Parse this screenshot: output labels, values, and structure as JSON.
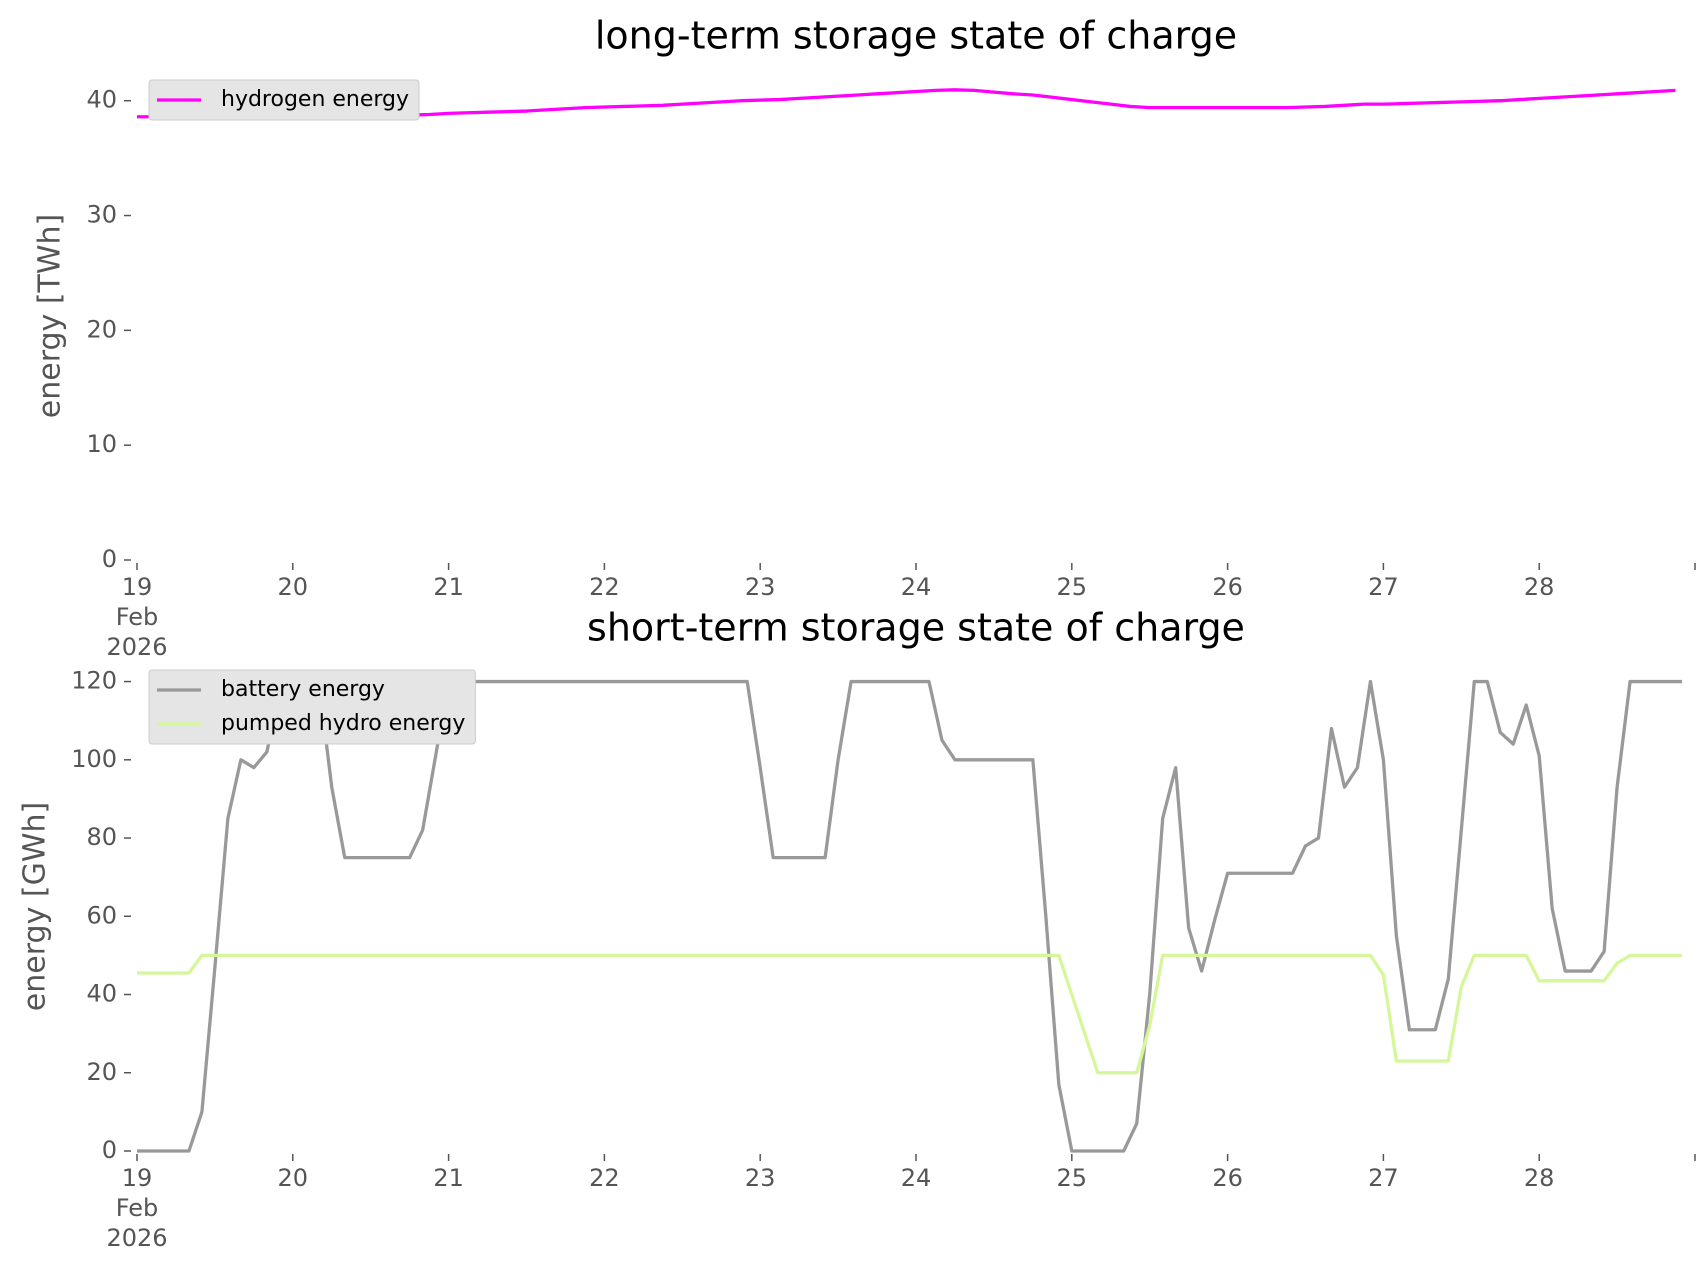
{
  "chart_data": [
    {
      "type": "line",
      "title": "long-term storage state of charge",
      "ylabel": "energy [TWh]",
      "xlim": [
        "2026-02-19T00:00",
        "2026-03-01T00:00"
      ],
      "xticks": [
        {
          "value": "2026-02-19T00:00",
          "label": "19\nFeb\n2026"
        },
        {
          "value": "2026-02-20T00:00",
          "label": "20"
        },
        {
          "value": "2026-02-21T00:00",
          "label": "21"
        },
        {
          "value": "2026-02-22T00:00",
          "label": "22"
        },
        {
          "value": "2026-02-23T00:00",
          "label": "23"
        },
        {
          "value": "2026-02-24T00:00",
          "label": "24"
        },
        {
          "value": "2026-02-25T00:00",
          "label": "25"
        },
        {
          "value": "2026-02-26T00:00",
          "label": "26"
        },
        {
          "value": "2026-02-27T00:00",
          "label": "27"
        },
        {
          "value": "2026-02-28T00:00",
          "label": "28"
        },
        {
          "value": "2026-03-01T00:00",
          "label": null
        }
      ],
      "ylim": [
        0,
        42.5
      ],
      "yticks": [
        0,
        10,
        20,
        30,
        40
      ],
      "legend": "upper left",
      "x": [
        "2026-02-19T00:00",
        "2026-02-19T03:00",
        "2026-02-19T06:00",
        "2026-02-19T09:00",
        "2026-02-19T12:00",
        "2026-02-19T15:00",
        "2026-02-19T18:00",
        "2026-02-19T21:00",
        "2026-02-20T00:00",
        "2026-02-20T03:00",
        "2026-02-20T06:00",
        "2026-02-20T09:00",
        "2026-02-20T12:00",
        "2026-02-20T15:00",
        "2026-02-20T18:00",
        "2026-02-20T21:00",
        "2026-02-21T00:00",
        "2026-02-21T03:00",
        "2026-02-21T06:00",
        "2026-02-21T09:00",
        "2026-02-21T12:00",
        "2026-02-21T15:00",
        "2026-02-21T18:00",
        "2026-02-21T21:00",
        "2026-02-22T00:00",
        "2026-02-22T03:00",
        "2026-02-22T06:00",
        "2026-02-22T09:00",
        "2026-02-22T12:00",
        "2026-02-22T15:00",
        "2026-02-22T18:00",
        "2026-02-22T21:00",
        "2026-02-23T00:00",
        "2026-02-23T03:00",
        "2026-02-23T06:00",
        "2026-02-23T09:00",
        "2026-02-23T12:00",
        "2026-02-23T15:00",
        "2026-02-23T18:00",
        "2026-02-23T21:00",
        "2026-02-24T00:00",
        "2026-02-24T03:00",
        "2026-02-24T06:00",
        "2026-02-24T09:00",
        "2026-02-24T12:00",
        "2026-02-24T15:00",
        "2026-02-24T18:00",
        "2026-02-24T21:00",
        "2026-02-25T00:00",
        "2026-02-25T03:00",
        "2026-02-25T06:00",
        "2026-02-25T09:00",
        "2026-02-25T12:00",
        "2026-02-25T15:00",
        "2026-02-25T18:00",
        "2026-02-25T21:00",
        "2026-02-26T00:00",
        "2026-02-26T03:00",
        "2026-02-26T06:00",
        "2026-02-26T09:00",
        "2026-02-26T12:00",
        "2026-02-26T15:00",
        "2026-02-26T18:00",
        "2026-02-26T21:00",
        "2026-02-27T00:00",
        "2026-02-27T03:00",
        "2026-02-27T06:00",
        "2026-02-27T09:00",
        "2026-02-27T12:00",
        "2026-02-27T15:00",
        "2026-02-27T18:00",
        "2026-02-27T21:00",
        "2026-02-28T00:00",
        "2026-02-28T03:00",
        "2026-02-28T06:00",
        "2026-02-28T09:00",
        "2026-02-28T12:00",
        "2026-02-28T15:00",
        "2026-02-28T18:00",
        "2026-02-28T21:00"
      ],
      "series": [
        {
          "name": "hydrogen energy",
          "color": "#ff00ff",
          "values": [
            38.6,
            38.6,
            38.6,
            38.6,
            38.6,
            38.6,
            38.6,
            38.6,
            38.6,
            38.6,
            38.6,
            38.6,
            38.65,
            38.7,
            38.75,
            38.8,
            38.9,
            38.95,
            39.0,
            39.05,
            39.1,
            39.2,
            39.3,
            39.4,
            39.45,
            39.5,
            39.55,
            39.6,
            39.7,
            39.8,
            39.9,
            40.0,
            40.05,
            40.1,
            40.2,
            40.3,
            40.4,
            40.5,
            40.6,
            40.7,
            40.8,
            40.9,
            40.95,
            40.9,
            40.75,
            40.6,
            40.5,
            40.3,
            40.1,
            39.9,
            39.7,
            39.5,
            39.4,
            39.4,
            39.4,
            39.4,
            39.4,
            39.4,
            39.4,
            39.4,
            39.45,
            39.5,
            39.6,
            39.7,
            39.7,
            39.75,
            39.8,
            39.85,
            39.9,
            39.95,
            40.0,
            40.1,
            40.2,
            40.3,
            40.4,
            40.5,
            40.6,
            40.7,
            40.8,
            40.9
          ]
        }
      ]
    },
    {
      "type": "line",
      "title": "short-term storage state of charge",
      "ylabel": "energy [GWh]",
      "xlim": [
        "2026-02-19T00:00",
        "2026-03-01T00:00"
      ],
      "xticks": [
        {
          "value": "2026-02-19T00:00",
          "label": "19\nFeb\n2026"
        },
        {
          "value": "2026-02-20T00:00",
          "label": "20"
        },
        {
          "value": "2026-02-21T00:00",
          "label": "21"
        },
        {
          "value": "2026-02-22T00:00",
          "label": "22"
        },
        {
          "value": "2026-02-23T00:00",
          "label": "23"
        },
        {
          "value": "2026-02-24T00:00",
          "label": "24"
        },
        {
          "value": "2026-02-25T00:00",
          "label": "25"
        },
        {
          "value": "2026-02-26T00:00",
          "label": "26"
        },
        {
          "value": "2026-02-27T00:00",
          "label": "27"
        },
        {
          "value": "2026-02-28T00:00",
          "label": "28"
        },
        {
          "value": "2026-03-01T00:00",
          "label": null
        }
      ],
      "ylim": [
        0,
        125
      ],
      "yticks": [
        0,
        20,
        40,
        60,
        80,
        100,
        120
      ],
      "legend": "upper left",
      "x": [
        "2026-02-19T00:00",
        "2026-02-19T02:00",
        "2026-02-19T04:00",
        "2026-02-19T06:00",
        "2026-02-19T08:00",
        "2026-02-19T10:00",
        "2026-02-19T12:00",
        "2026-02-19T14:00",
        "2026-02-19T16:00",
        "2026-02-19T18:00",
        "2026-02-19T20:00",
        "2026-02-19T22:00",
        "2026-02-20T00:00",
        "2026-02-20T02:00",
        "2026-02-20T04:00",
        "2026-02-20T06:00",
        "2026-02-20T08:00",
        "2026-02-20T10:00",
        "2026-02-20T12:00",
        "2026-02-20T14:00",
        "2026-02-20T16:00",
        "2026-02-20T18:00",
        "2026-02-20T20:00",
        "2026-02-20T22:00",
        "2026-02-21T00:00",
        "2026-02-21T02:00",
        "2026-02-21T04:00",
        "2026-02-21T06:00",
        "2026-02-21T08:00",
        "2026-02-21T10:00",
        "2026-02-21T12:00",
        "2026-02-21T14:00",
        "2026-02-21T16:00",
        "2026-02-21T18:00",
        "2026-02-21T20:00",
        "2026-02-21T22:00",
        "2026-02-22T00:00",
        "2026-02-22T02:00",
        "2026-02-22T04:00",
        "2026-02-22T06:00",
        "2026-02-22T08:00",
        "2026-02-22T10:00",
        "2026-02-22T12:00",
        "2026-02-22T14:00",
        "2026-02-22T16:00",
        "2026-02-22T18:00",
        "2026-02-22T20:00",
        "2026-02-22T22:00",
        "2026-02-23T00:00",
        "2026-02-23T02:00",
        "2026-02-23T04:00",
        "2026-02-23T06:00",
        "2026-02-23T08:00",
        "2026-02-23T10:00",
        "2026-02-23T12:00",
        "2026-02-23T14:00",
        "2026-02-23T16:00",
        "2026-02-23T18:00",
        "2026-02-23T20:00",
        "2026-02-23T22:00",
        "2026-02-24T00:00",
        "2026-02-24T02:00",
        "2026-02-24T04:00",
        "2026-02-24T06:00",
        "2026-02-24T08:00",
        "2026-02-24T10:00",
        "2026-02-24T12:00",
        "2026-02-24T14:00",
        "2026-02-24T16:00",
        "2026-02-24T18:00",
        "2026-02-24T20:00",
        "2026-02-24T22:00",
        "2026-02-25T00:00",
        "2026-02-25T02:00",
        "2026-02-25T04:00",
        "2026-02-25T06:00",
        "2026-02-25T08:00",
        "2026-02-25T10:00",
        "2026-02-25T12:00",
        "2026-02-25T14:00",
        "2026-02-25T16:00",
        "2026-02-25T18:00",
        "2026-02-25T20:00",
        "2026-02-25T22:00",
        "2026-02-26T00:00",
        "2026-02-26T02:00",
        "2026-02-26T04:00",
        "2026-02-26T06:00",
        "2026-02-26T08:00",
        "2026-02-26T10:00",
        "2026-02-26T12:00",
        "2026-02-26T14:00",
        "2026-02-26T16:00",
        "2026-02-26T18:00",
        "2026-02-26T20:00",
        "2026-02-26T22:00",
        "2026-02-27T00:00",
        "2026-02-27T02:00",
        "2026-02-27T04:00",
        "2026-02-27T06:00",
        "2026-02-27T08:00",
        "2026-02-27T10:00",
        "2026-02-27T12:00",
        "2026-02-27T14:00",
        "2026-02-27T16:00",
        "2026-02-27T18:00",
        "2026-02-27T20:00",
        "2026-02-27T22:00",
        "2026-02-28T00:00",
        "2026-02-28T02:00",
        "2026-02-28T04:00",
        "2026-02-28T06:00",
        "2026-02-28T08:00",
        "2026-02-28T10:00",
        "2026-02-28T12:00",
        "2026-02-28T14:00",
        "2026-02-28T16:00",
        "2026-02-28T18:00",
        "2026-02-28T20:00",
        "2026-02-28T22:00"
      ],
      "series": [
        {
          "name": "battery energy",
          "color": "#999999",
          "values": [
            0,
            0,
            0,
            0,
            0,
            10,
            47,
            85,
            100,
            98,
            102,
            117,
            120,
            120,
            120,
            93,
            75,
            75,
            75,
            75,
            75,
            75,
            82,
            101,
            120,
            120,
            120,
            120,
            120,
            120,
            120,
            120,
            120,
            120,
            120,
            120,
            120,
            120,
            120,
            120,
            120,
            120,
            120,
            120,
            120,
            120,
            120,
            120,
            98,
            75,
            75,
            75,
            75,
            75,
            100,
            120,
            120,
            120,
            120,
            120,
            120,
            120,
            105,
            100,
            100,
            100,
            100,
            100,
            100,
            100,
            60,
            17,
            0,
            0,
            0,
            0,
            0,
            7,
            40,
            85,
            98,
            57,
            46,
            59,
            71,
            71,
            71,
            71,
            71,
            71,
            78,
            80,
            108,
            93,
            98,
            120,
            100,
            55,
            31,
            31,
            31,
            44,
            82,
            120,
            120,
            107,
            104,
            114,
            101,
            62,
            46,
            46,
            46,
            51,
            93,
            120,
            120,
            120,
            120,
            120
          ]
        },
        {
          "name": "pumped hydro energy",
          "color": "#d5f79a",
          "values": [
            45.5,
            45.5,
            45.5,
            45.5,
            45.5,
            50,
            50,
            50,
            50,
            50,
            50,
            50,
            50,
            50,
            50,
            50,
            50,
            50,
            50,
            50,
            50,
            50,
            50,
            50,
            50,
            50,
            50,
            50,
            50,
            50,
            50,
            50,
            50,
            50,
            50,
            50,
            50,
            50,
            50,
            50,
            50,
            50,
            50,
            50,
            50,
            50,
            50,
            50,
            50,
            50,
            50,
            50,
            50,
            50,
            50,
            50,
            50,
            50,
            50,
            50,
            50,
            50,
            50,
            50,
            50,
            50,
            50,
            50,
            50,
            50,
            50,
            50,
            40,
            30,
            20,
            20,
            20,
            20,
            32,
            50,
            50,
            50,
            50,
            50,
            50,
            50,
            50,
            50,
            50,
            50,
            50,
            50,
            50,
            50,
            50,
            50,
            45,
            23,
            23,
            23,
            23,
            23,
            42,
            50,
            50,
            50,
            50,
            50,
            43.5,
            43.5,
            43.5,
            43.5,
            43.5,
            43.5,
            48,
            50,
            50,
            50,
            50,
            50
          ]
        }
      ]
    }
  ]
}
